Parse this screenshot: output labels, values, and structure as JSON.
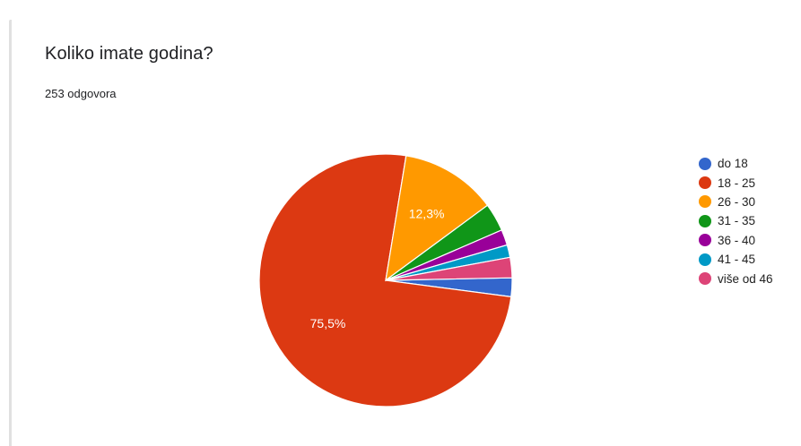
{
  "question": {
    "title": "Koliko imate godina?",
    "responses": "253 odgovora"
  },
  "chart_data": {
    "type": "pie",
    "title": "Koliko imate godina?",
    "start_angle_deg": 90,
    "direction": "clockwise",
    "slices": [
      {
        "label": "do 18",
        "percent": 2.4,
        "color": "#3366cc",
        "data_label": ""
      },
      {
        "label": "18 - 25",
        "percent": 75.5,
        "color": "#dc3912",
        "data_label": "75,5%"
      },
      {
        "label": "26 - 30",
        "percent": 12.3,
        "color": "#ff9900",
        "data_label": "12,3%"
      },
      {
        "label": "31 - 35",
        "percent": 3.6,
        "color": "#109618",
        "data_label": ""
      },
      {
        "label": "36 - 40",
        "percent": 2.0,
        "color": "#990099",
        "data_label": ""
      },
      {
        "label": "41 - 45",
        "percent": 1.6,
        "color": "#0099c6",
        "data_label": ""
      },
      {
        "label": "više od 46",
        "percent": 2.6,
        "color": "#dd4477",
        "data_label": ""
      }
    ],
    "legend_position": "right"
  }
}
